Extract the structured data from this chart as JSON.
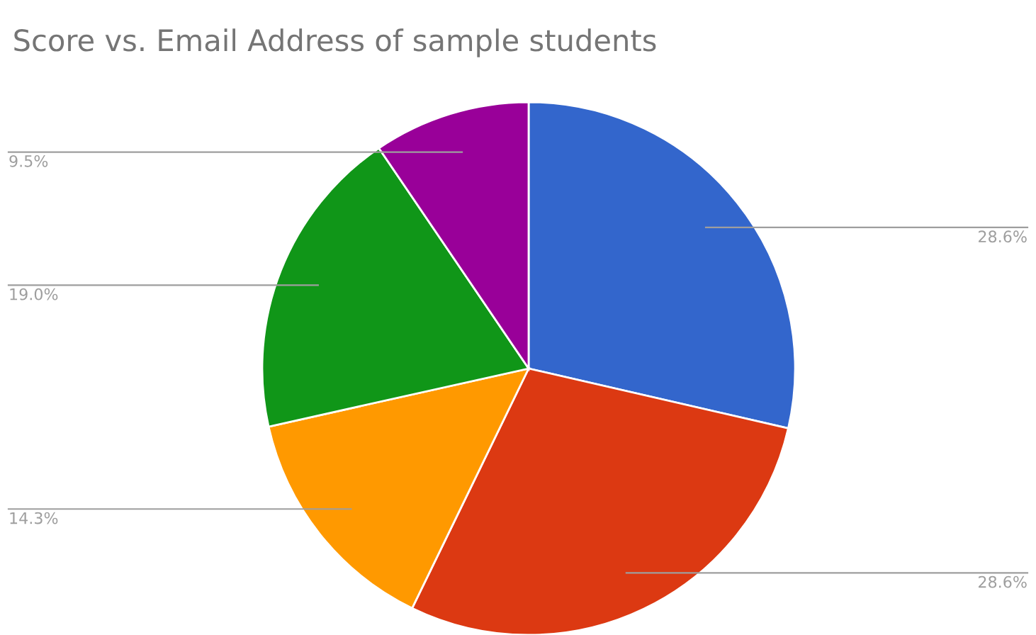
{
  "chart_data": {
    "type": "pie",
    "title": "Score vs. Email Address of sample students",
    "categories": [
      null,
      null,
      null,
      null,
      null
    ],
    "values": [
      28.6,
      28.6,
      14.3,
      19.0,
      9.5
    ],
    "colors": [
      "#3366cc",
      "#dc3912",
      "#ff9900",
      "#109618",
      "#990099"
    ],
    "value_labels": [
      "28.6%",
      "28.6%",
      "14.3%",
      "19.0%",
      "9.5%"
    ],
    "legend": false
  }
}
